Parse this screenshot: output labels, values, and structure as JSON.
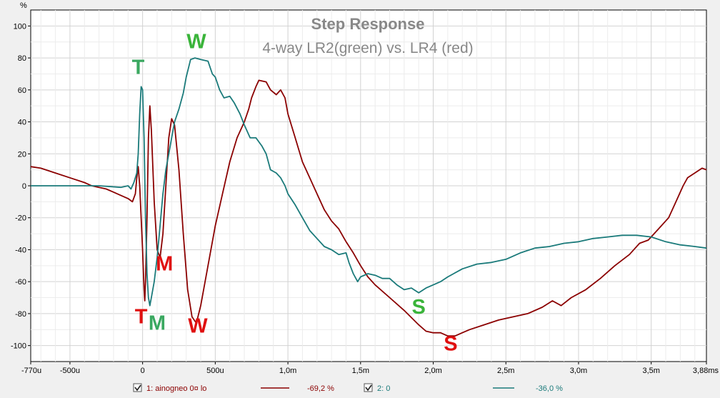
{
  "chart_data": {
    "type": "line",
    "title": "Step Response",
    "subtitle": "4-way LR2(green) vs. LR4 (red)",
    "yunit": "%",
    "xunit": "ms",
    "xlim": [
      -0.77,
      3.88
    ],
    "ylim": [
      -110,
      110
    ],
    "grid": true,
    "yticks": [
      {
        "v": 100,
        "label": "100"
      },
      {
        "v": 80,
        "label": "80"
      },
      {
        "v": 60,
        "label": "60"
      },
      {
        "v": 40,
        "label": "40"
      },
      {
        "v": 20,
        "label": "20"
      },
      {
        "v": 0,
        "label": "0"
      },
      {
        "v": -20,
        "label": "-20"
      },
      {
        "v": -40,
        "label": "-40"
      },
      {
        "v": -60,
        "label": "-60"
      },
      {
        "v": -80,
        "label": "-80"
      },
      {
        "v": -100,
        "label": "-100"
      }
    ],
    "xticks": [
      {
        "v": -0.77,
        "label": "-770u"
      },
      {
        "v": -0.5,
        "label": "-500u"
      },
      {
        "v": 0,
        "label": "0"
      },
      {
        "v": 0.5,
        "label": "500u"
      },
      {
        "v": 1.0,
        "label": "1,0m"
      },
      {
        "v": 1.5,
        "label": "1,5m"
      },
      {
        "v": 2.0,
        "label": "2,0m"
      },
      {
        "v": 2.5,
        "label": "2,5m"
      },
      {
        "v": 3.0,
        "label": "3,0m"
      },
      {
        "v": 3.5,
        "label": "3,5m"
      },
      {
        "v": 3.88,
        "label": "3,88ms"
      }
    ],
    "series": [
      {
        "name": "1: ainogneo 0¤ lo",
        "legend_value": "-69,2 %",
        "color": "#8b0000",
        "points": [
          [
            -0.77,
            12
          ],
          [
            -0.7,
            11
          ],
          [
            -0.6,
            8
          ],
          [
            -0.5,
            5
          ],
          [
            -0.4,
            2
          ],
          [
            -0.35,
            0
          ],
          [
            -0.3,
            -1
          ],
          [
            -0.25,
            -2
          ],
          [
            -0.2,
            -4
          ],
          [
            -0.15,
            -6
          ],
          [
            -0.1,
            -8
          ],
          [
            -0.07,
            -10
          ],
          [
            -0.05,
            -5
          ],
          [
            -0.04,
            5
          ],
          [
            -0.03,
            12
          ],
          [
            -0.02,
            0
          ],
          [
            0.0,
            -40
          ],
          [
            0.01,
            -65
          ],
          [
            0.015,
            -72
          ],
          [
            0.02,
            -60
          ],
          [
            0.03,
            -20
          ],
          [
            0.04,
            30
          ],
          [
            0.05,
            50
          ],
          [
            0.06,
            35
          ],
          [
            0.08,
            -10
          ],
          [
            0.1,
            -40
          ],
          [
            0.12,
            -45
          ],
          [
            0.14,
            -30
          ],
          [
            0.16,
            0
          ],
          [
            0.18,
            30
          ],
          [
            0.2,
            42
          ],
          [
            0.22,
            38
          ],
          [
            0.25,
            10
          ],
          [
            0.28,
            -30
          ],
          [
            0.31,
            -65
          ],
          [
            0.34,
            -82
          ],
          [
            0.37,
            -86
          ],
          [
            0.4,
            -75
          ],
          [
            0.45,
            -50
          ],
          [
            0.5,
            -25
          ],
          [
            0.55,
            -5
          ],
          [
            0.6,
            15
          ],
          [
            0.65,
            30
          ],
          [
            0.7,
            40
          ],
          [
            0.73,
            48
          ],
          [
            0.75,
            55
          ],
          [
            0.78,
            62
          ],
          [
            0.8,
            66
          ],
          [
            0.85,
            65
          ],
          [
            0.88,
            60
          ],
          [
            0.92,
            57
          ],
          [
            0.95,
            60
          ],
          [
            0.98,
            55
          ],
          [
            1.0,
            45
          ],
          [
            1.05,
            30
          ],
          [
            1.1,
            15
          ],
          [
            1.15,
            5
          ],
          [
            1.2,
            -5
          ],
          [
            1.25,
            -15
          ],
          [
            1.3,
            -22
          ],
          [
            1.35,
            -27
          ],
          [
            1.4,
            -35
          ],
          [
            1.45,
            -42
          ],
          [
            1.5,
            -50
          ],
          [
            1.55,
            -57
          ],
          [
            1.6,
            -62
          ],
          [
            1.7,
            -70
          ],
          [
            1.8,
            -78
          ],
          [
            1.9,
            -87
          ],
          [
            1.95,
            -91
          ],
          [
            2.0,
            -92
          ],
          [
            2.05,
            -92
          ],
          [
            2.1,
            -94
          ],
          [
            2.15,
            -94
          ],
          [
            2.2,
            -92
          ],
          [
            2.25,
            -90
          ],
          [
            2.35,
            -87
          ],
          [
            2.45,
            -84
          ],
          [
            2.55,
            -82
          ],
          [
            2.65,
            -80
          ],
          [
            2.75,
            -76
          ],
          [
            2.82,
            -72
          ],
          [
            2.88,
            -75
          ],
          [
            2.95,
            -70
          ],
          [
            3.05,
            -65
          ],
          [
            3.15,
            -58
          ],
          [
            3.25,
            -50
          ],
          [
            3.35,
            -43
          ],
          [
            3.42,
            -36
          ],
          [
            3.48,
            -34
          ],
          [
            3.55,
            -27
          ],
          [
            3.62,
            -20
          ],
          [
            3.67,
            -10
          ],
          [
            3.72,
            0
          ],
          [
            3.75,
            5
          ],
          [
            3.8,
            8
          ],
          [
            3.85,
            11
          ],
          [
            3.88,
            10
          ]
        ]
      },
      {
        "name": "2: 0",
        "legend_value": "-36,0 %",
        "color": "#1a7a7a",
        "points": [
          [
            -0.77,
            0
          ],
          [
            -0.5,
            0
          ],
          [
            -0.3,
            0
          ],
          [
            -0.15,
            -1
          ],
          [
            -0.1,
            0
          ],
          [
            -0.08,
            -2
          ],
          [
            -0.06,
            2
          ],
          [
            -0.04,
            8
          ],
          [
            -0.03,
            20
          ],
          [
            -0.02,
            45
          ],
          [
            -0.01,
            62
          ],
          [
            0.0,
            60
          ],
          [
            0.01,
            30
          ],
          [
            0.02,
            -20
          ],
          [
            0.03,
            -55
          ],
          [
            0.04,
            -70
          ],
          [
            0.05,
            -75
          ],
          [
            0.06,
            -70
          ],
          [
            0.08,
            -60
          ],
          [
            0.1,
            -45
          ],
          [
            0.12,
            -25
          ],
          [
            0.14,
            -5
          ],
          [
            0.16,
            10
          ],
          [
            0.18,
            20
          ],
          [
            0.2,
            30
          ],
          [
            0.22,
            40
          ],
          [
            0.25,
            48
          ],
          [
            0.28,
            58
          ],
          [
            0.3,
            68
          ],
          [
            0.33,
            79
          ],
          [
            0.36,
            80
          ],
          [
            0.4,
            79
          ],
          [
            0.45,
            78
          ],
          [
            0.48,
            70
          ],
          [
            0.5,
            68
          ],
          [
            0.53,
            60
          ],
          [
            0.56,
            55
          ],
          [
            0.6,
            56
          ],
          [
            0.63,
            52
          ],
          [
            0.67,
            45
          ],
          [
            0.7,
            38
          ],
          [
            0.74,
            30
          ],
          [
            0.78,
            30
          ],
          [
            0.82,
            25
          ],
          [
            0.85,
            20
          ],
          [
            0.88,
            10
          ],
          [
            0.92,
            8
          ],
          [
            0.95,
            5
          ],
          [
            0.98,
            0
          ],
          [
            1.0,
            -5
          ],
          [
            1.05,
            -12
          ],
          [
            1.1,
            -20
          ],
          [
            1.15,
            -28
          ],
          [
            1.2,
            -33
          ],
          [
            1.25,
            -38
          ],
          [
            1.3,
            -40
          ],
          [
            1.35,
            -43
          ],
          [
            1.4,
            -42
          ],
          [
            1.42,
            -48
          ],
          [
            1.45,
            -55
          ],
          [
            1.48,
            -60
          ],
          [
            1.5,
            -57
          ],
          [
            1.55,
            -55
          ],
          [
            1.6,
            -56
          ],
          [
            1.65,
            -58
          ],
          [
            1.7,
            -58
          ],
          [
            1.75,
            -62
          ],
          [
            1.8,
            -65
          ],
          [
            1.85,
            -64
          ],
          [
            1.9,
            -67
          ],
          [
            1.95,
            -64
          ],
          [
            2.0,
            -62
          ],
          [
            2.05,
            -60
          ],
          [
            2.1,
            -57
          ],
          [
            2.2,
            -52
          ],
          [
            2.3,
            -49
          ],
          [
            2.4,
            -48
          ],
          [
            2.5,
            -46
          ],
          [
            2.6,
            -42
          ],
          [
            2.7,
            -39
          ],
          [
            2.8,
            -38
          ],
          [
            2.9,
            -36
          ],
          [
            3.0,
            -35
          ],
          [
            3.1,
            -33
          ],
          [
            3.2,
            -32
          ],
          [
            3.3,
            -31
          ],
          [
            3.4,
            -31
          ],
          [
            3.5,
            -32
          ],
          [
            3.6,
            -35
          ],
          [
            3.7,
            -37
          ],
          [
            3.8,
            -38
          ],
          [
            3.88,
            -39
          ]
        ]
      }
    ],
    "annotations": [
      {
        "text": "T",
        "x": -0.03,
        "y": 70,
        "color": "#3aa860"
      },
      {
        "text": "W",
        "x": 0.37,
        "y": 86,
        "color": "#3ab43a"
      },
      {
        "text": "M",
        "x": 0.15,
        "y": -53,
        "color": "#e01010"
      },
      {
        "text": "T",
        "x": -0.01,
        "y": -86,
        "color": "#e01010"
      },
      {
        "text": "M",
        "x": 0.1,
        "y": -90,
        "color": "#3aa860"
      },
      {
        "text": "W",
        "x": 0.38,
        "y": -92,
        "color": "#e01010"
      },
      {
        "text": "S",
        "x": 1.9,
        "y": -80,
        "color": "#3ab43a"
      },
      {
        "text": "S",
        "x": 2.12,
        "y": -103,
        "color": "#e01010"
      }
    ]
  }
}
